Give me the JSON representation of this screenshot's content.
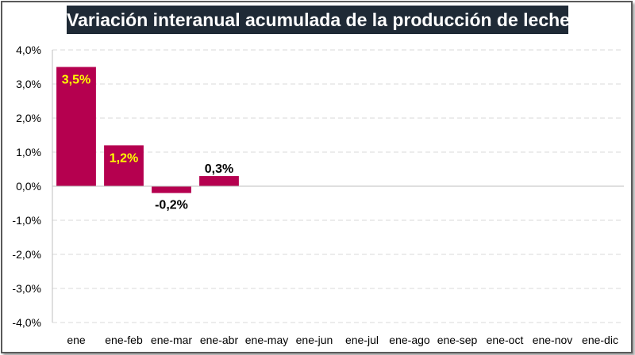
{
  "chart_data": {
    "type": "bar",
    "title": "Variación interanual acumulada de la producción de leche",
    "categories": [
      "ene",
      "ene-feb",
      "ene-mar",
      "ene-abr",
      "ene-may",
      "ene-jun",
      "ene-jul",
      "ene-ago",
      "ene-sep",
      "ene-oct",
      "ene-nov",
      "ene-dic"
    ],
    "values": [
      3.5,
      1.2,
      -0.2,
      0.3,
      null,
      null,
      null,
      null,
      null,
      null,
      null,
      null
    ],
    "data_labels": [
      "3,5%",
      "1,2%",
      "-0,2%",
      "0,3%",
      "",
      "",
      "",
      "",
      "",
      "",
      "",
      ""
    ],
    "ylim": [
      -4,
      4
    ],
    "yticks": [
      4,
      3,
      2,
      1,
      0,
      -1,
      -2,
      -3,
      -4
    ],
    "ytick_labels": [
      "4,0%",
      "3,0%",
      "2,0%",
      "1,0%",
      "0,0%",
      "-1,0%",
      "-2,0%",
      "-3,0%",
      "-4,0%"
    ],
    "xlabel": "",
    "ylabel": "",
    "grid": true,
    "colors": {
      "bar": "#b5004f",
      "title_bg": "#1f2a36",
      "title_text": "#ffffff",
      "label_inside": "#ffff00",
      "label_outside": "#000000",
      "grid": "#d9d9d9",
      "axis": "#bfbfbf"
    }
  }
}
